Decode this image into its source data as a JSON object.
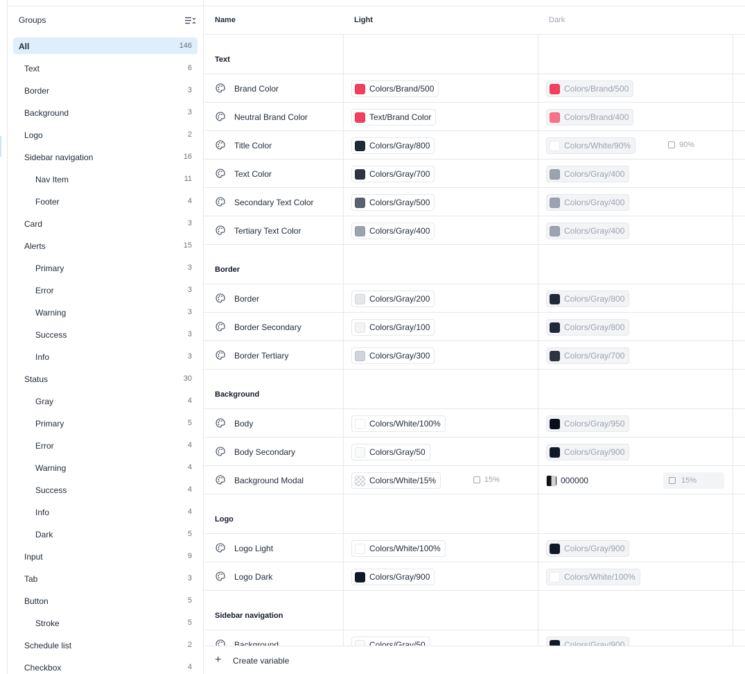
{
  "sidebar": {
    "title": "Groups",
    "groups": [
      {
        "label": "All",
        "count": "146",
        "indent": 0,
        "active": true
      },
      {
        "label": "Text",
        "count": "6",
        "indent": 0
      },
      {
        "label": "Border",
        "count": "3",
        "indent": 0
      },
      {
        "label": "Background",
        "count": "3",
        "indent": 0
      },
      {
        "label": "Logo",
        "count": "2",
        "indent": 0
      },
      {
        "label": "Sidebar navigation",
        "count": "16",
        "indent": 0
      },
      {
        "label": "Nav Item",
        "count": "11",
        "indent": 1
      },
      {
        "label": "Footer",
        "count": "4",
        "indent": 1
      },
      {
        "label": "Card",
        "count": "3",
        "indent": 0
      },
      {
        "label": "Alerts",
        "count": "15",
        "indent": 0
      },
      {
        "label": "Primary",
        "count": "3",
        "indent": 1
      },
      {
        "label": "Error",
        "count": "3",
        "indent": 1
      },
      {
        "label": "Warning",
        "count": "3",
        "indent": 1
      },
      {
        "label": "Success",
        "count": "3",
        "indent": 1
      },
      {
        "label": "Info",
        "count": "3",
        "indent": 1
      },
      {
        "label": "Status",
        "count": "30",
        "indent": 0
      },
      {
        "label": "Gray",
        "count": "4",
        "indent": 1
      },
      {
        "label": "Primary",
        "count": "5",
        "indent": 1
      },
      {
        "label": "Error",
        "count": "4",
        "indent": 1
      },
      {
        "label": "Warning",
        "count": "4",
        "indent": 1
      },
      {
        "label": "Success",
        "count": "4",
        "indent": 1
      },
      {
        "label": "Info",
        "count": "4",
        "indent": 1
      },
      {
        "label": "Dark",
        "count": "5",
        "indent": 1
      },
      {
        "label": "Input",
        "count": "9",
        "indent": 0
      },
      {
        "label": "Tab",
        "count": "3",
        "indent": 0
      },
      {
        "label": "Button",
        "count": "5",
        "indent": 0
      },
      {
        "label": "Stroke",
        "count": "5",
        "indent": 1
      },
      {
        "label": "Schedule list",
        "count": "2",
        "indent": 0
      },
      {
        "label": "Checkbox",
        "count": "4",
        "indent": 0
      }
    ]
  },
  "table": {
    "columns": {
      "name": "Name",
      "light": "Light",
      "dark": "Dark"
    }
  },
  "sections": [
    {
      "title": "Text",
      "rows": [
        {
          "name": "Brand Color",
          "light": {
            "label": "Colors/Brand/500",
            "color": "#f43f5e"
          },
          "dark": {
            "label": "Colors/Brand/500",
            "color": "#f43f5e"
          }
        },
        {
          "name": "Neutral Brand Color",
          "light": {
            "label": "Text/Brand Color",
            "color": "#f43f5e"
          },
          "dark": {
            "label": "Colors/Brand/400",
            "color": "#fb7185"
          }
        },
        {
          "name": "Title Color",
          "light": {
            "label": "Colors/Gray/800",
            "color": "#1f2937"
          },
          "dark": {
            "label": "Colors/White/90%",
            "color": "#ffffff",
            "opacity": "90%"
          }
        },
        {
          "name": "Text Color",
          "light": {
            "label": "Colors/Gray/700",
            "color": "#2e3440"
          },
          "dark": {
            "label": "Colors/Gray/400",
            "color": "#9ca3af"
          }
        },
        {
          "name": "Secondary Text Color",
          "light": {
            "label": "Colors/Gray/500",
            "color": "#5a6170"
          },
          "dark": {
            "label": "Colors/Gray/400",
            "color": "#9ca3af"
          }
        },
        {
          "name": "Tertiary Text Color",
          "light": {
            "label": "Colors/Gray/400",
            "color": "#9ca3af"
          },
          "dark": {
            "label": "Colors/Gray/400",
            "color": "#9ca3af"
          }
        }
      ]
    },
    {
      "title": "Border",
      "rows": [
        {
          "name": "Border",
          "light": {
            "label": "Colors/Gray/200",
            "color": "#e5e7eb"
          },
          "dark": {
            "label": "Colors/Gray/800",
            "color": "#1f2937"
          }
        },
        {
          "name": "Border Secondary",
          "light": {
            "label": "Colors/Gray/100",
            "color": "#f3f4f6"
          },
          "dark": {
            "label": "Colors/Gray/800",
            "color": "#1f2937"
          }
        },
        {
          "name": "Border Tertiary",
          "light": {
            "label": "Colors/Gray/300",
            "color": "#d1d5db"
          },
          "dark": {
            "label": "Colors/Gray/700",
            "color": "#2e3440"
          }
        }
      ]
    },
    {
      "title": "Background",
      "rows": [
        {
          "name": "Body",
          "light": {
            "label": "Colors/White/100%",
            "color": "#ffffff"
          },
          "dark": {
            "label": "Colors/Gray/950",
            "color": "#0b0f19"
          }
        },
        {
          "name": "Body Secondary",
          "light": {
            "label": "Colors/Gray/50",
            "color": "#f9fafb"
          },
          "dark": {
            "label": "Colors/Gray/900",
            "color": "#111827"
          }
        },
        {
          "name": "Background Modal",
          "light": {
            "label": "Colors/White/15%",
            "color": "checker",
            "opacity": "15%"
          },
          "dark": {
            "label": "000000",
            "color": "half",
            "plain": true,
            "opacity_pill": "15%"
          }
        }
      ]
    },
    {
      "title": "Logo",
      "rows": [
        {
          "name": "Logo Light",
          "light": {
            "label": "Colors/White/100%",
            "color": "#ffffff"
          },
          "dark": {
            "label": "Colors/Gray/900",
            "color": "#111827"
          }
        },
        {
          "name": "Logo Dark",
          "light": {
            "label": "Colors/Gray/900",
            "color": "#111827"
          },
          "dark": {
            "label": "Colors/White/100%",
            "color": "#ffffff"
          }
        }
      ]
    },
    {
      "title": "Sidebar navigation",
      "rows": [
        {
          "name": "Background",
          "light": {
            "label": "Colors/Gray/50",
            "color": "#f9fafb"
          },
          "dark": {
            "label": "Colors/Gray/900",
            "color": "#111827"
          }
        }
      ]
    }
  ],
  "footer": {
    "create_label": "Create variable"
  }
}
